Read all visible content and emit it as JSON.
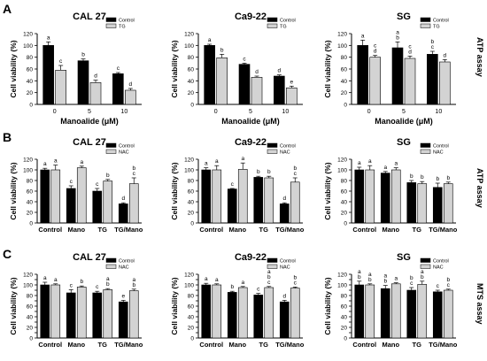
{
  "colors": {
    "control": "#000000",
    "treat": "#d3d3d3",
    "axis": "#000000"
  },
  "panel_letters": [
    "A",
    "B",
    "C"
  ],
  "assay_labels": [
    "ATP assay",
    "ATP assay",
    "MTS assay"
  ],
  "chart_data": [
    {
      "type": "bar",
      "row": 0,
      "col": 0,
      "title": "CAL 27",
      "xlabel": "Manoalide (μM)",
      "ylabel": "Cell viability (%)",
      "ylim": [
        0,
        120
      ],
      "yticks": [
        0,
        20,
        40,
        60,
        80,
        100,
        120
      ],
      "categories": [
        "0",
        "5",
        "10"
      ],
      "legend": {
        "placement": "top-right",
        "entries": [
          "Control",
          "TG"
        ]
      },
      "series": [
        {
          "name": "Control",
          "values": [
            100,
            74,
            52
          ],
          "errors": [
            6,
            3,
            2
          ],
          "letters": [
            "a",
            "b",
            "c"
          ]
        },
        {
          "name": "TG",
          "values": [
            58,
            37,
            24
          ],
          "errors": [
            8,
            4,
            3
          ],
          "letters": [
            "c",
            "d",
            "d"
          ]
        }
      ]
    },
    {
      "type": "bar",
      "row": 0,
      "col": 1,
      "title": "Ca9-22",
      "xlabel": "Manoalide (μM)",
      "ylabel": "Cell viability (%)",
      "ylim": [
        0,
        120
      ],
      "yticks": [
        0,
        20,
        40,
        60,
        80,
        100,
        120
      ],
      "categories": [
        "0",
        "5",
        "10"
      ],
      "legend": {
        "placement": "top-right",
        "entries": [
          "Control",
          "TG"
        ]
      },
      "series": [
        {
          "name": "Control",
          "values": [
            100,
            68,
            48
          ],
          "errors": [
            2,
            2,
            2
          ],
          "letters": [
            "a",
            "c",
            "d"
          ]
        },
        {
          "name": "TG",
          "values": [
            79,
            46,
            28
          ],
          "errors": [
            6,
            2,
            3
          ],
          "letters": [
            "b",
            "d",
            "e"
          ]
        }
      ]
    },
    {
      "type": "bar",
      "row": 0,
      "col": 2,
      "title": "SG",
      "xlabel": "Manoalide (μM)",
      "ylabel": "Cell viability (%)",
      "ylim": [
        0,
        120
      ],
      "yticks": [
        0,
        20,
        40,
        60,
        80,
        100,
        120
      ],
      "categories": [
        "0",
        "5",
        "10"
      ],
      "legend": {
        "placement": "top-right",
        "entries": [
          "Control",
          "TG"
        ]
      },
      "series": [
        {
          "name": "Control",
          "values": [
            100,
            96,
            85
          ],
          "errors": [
            9,
            10,
            5
          ],
          "letters": [
            "a",
            "a\nb",
            "b\nc"
          ]
        },
        {
          "name": "TG",
          "values": [
            80,
            78,
            72
          ],
          "errors": [
            3,
            4,
            4
          ],
          "letters": [
            "c\nd",
            "c\nd",
            "d"
          ]
        }
      ]
    },
    {
      "type": "bar",
      "row": 1,
      "col": 0,
      "title": "CAL 27",
      "ylabel": "Cell viability (%)",
      "ylim": [
        0,
        120
      ],
      "yticks": [
        0,
        20,
        40,
        60,
        80,
        100,
        120
      ],
      "categories": [
        "Control",
        "Mano",
        "TG",
        "TG/Mano"
      ],
      "legend": {
        "placement": "top-right",
        "entries": [
          "Control",
          "NAC"
        ]
      },
      "series": [
        {
          "name": "Control",
          "values": [
            100,
            65,
            60,
            36
          ],
          "errors": [
            3,
            5,
            5,
            2
          ],
          "letters": [
            "a",
            "c",
            "c",
            "d"
          ]
        },
        {
          "name": "NAC",
          "values": [
            100,
            104,
            79,
            74
          ],
          "errors": [
            9,
            3,
            3,
            11
          ],
          "letters": [
            "a",
            "a",
            "b",
            "b\nc"
          ]
        }
      ]
    },
    {
      "type": "bar",
      "row": 1,
      "col": 1,
      "title": "Ca9-22",
      "ylabel": "Cell viability (%)",
      "ylim": [
        0,
        120
      ],
      "yticks": [
        0,
        20,
        40,
        60,
        80,
        100,
        120
      ],
      "categories": [
        "Control",
        "Mano",
        "TG",
        "TG/Mano"
      ],
      "legend": {
        "placement": "top-right",
        "entries": [
          "Control",
          "NAC"
        ]
      },
      "series": [
        {
          "name": "Control",
          "values": [
            100,
            64,
            86,
            36
          ],
          "errors": [
            4,
            1,
            2,
            2
          ],
          "letters": [
            "a",
            "c",
            "b",
            "d"
          ]
        },
        {
          "name": "NAC",
          "values": [
            100,
            101,
            85,
            77
          ],
          "errors": [
            8,
            12,
            3,
            8
          ],
          "letters": [
            "a",
            "a",
            "b",
            "b\nc"
          ]
        }
      ]
    },
    {
      "type": "bar",
      "row": 1,
      "col": 2,
      "title": "SG",
      "ylabel": "Cell viability (%)",
      "ylim": [
        0,
        120
      ],
      "yticks": [
        0,
        20,
        40,
        60,
        80,
        100,
        120
      ],
      "categories": [
        "Control",
        "Mano",
        "TG",
        "TG/Mano"
      ],
      "legend": {
        "placement": "top-right",
        "entries": [
          "Control",
          "NAC"
        ]
      },
      "series": [
        {
          "name": "Control",
          "values": [
            100,
            94,
            76,
            67
          ],
          "errors": [
            5,
            3,
            4,
            8
          ],
          "letters": [
            "a",
            "a",
            "b",
            "b"
          ]
        },
        {
          "name": "NAC",
          "values": [
            100,
            100,
            74,
            74
          ],
          "errors": [
            8,
            4,
            4,
            3
          ],
          "letters": [
            "a",
            "a",
            "b",
            "b"
          ]
        }
      ]
    },
    {
      "type": "bar",
      "row": 2,
      "col": 0,
      "title": "CAL 27",
      "ylabel": "Cell viability (%)",
      "ylim": [
        0,
        120
      ],
      "yticks": [
        0,
        10,
        20,
        30,
        40,
        50,
        60,
        70,
        80,
        90,
        100,
        110,
        120
      ],
      "categories": [
        "Control",
        "Mano",
        "TG",
        "TG/Mano"
      ],
      "legend": {
        "placement": "top-right",
        "entries": [
          "Control",
          "NAC"
        ]
      },
      "series": [
        {
          "name": "Control",
          "values": [
            100,
            85,
            85,
            68
          ],
          "errors": [
            5,
            6,
            3,
            3
          ],
          "letters": [
            "a",
            "c",
            "c",
            "e"
          ]
        },
        {
          "name": "NAC",
          "values": [
            100,
            96,
            91,
            89
          ],
          "errors": [
            2,
            2,
            2,
            3
          ],
          "letters": [
            "a",
            "b",
            "a\nb",
            "a\nb"
          ]
        }
      ]
    },
    {
      "type": "bar",
      "row": 2,
      "col": 1,
      "title": "Ca9-22",
      "ylabel": "Cell viability (%)",
      "ylim": [
        0,
        120
      ],
      "yticks": [
        0,
        10,
        20,
        30,
        40,
        50,
        60,
        70,
        80,
        90,
        100,
        110,
        120
      ],
      "categories": [
        "Control",
        "Mano",
        "TG",
        "TG/Mano"
      ],
      "legend": {
        "placement": "top-right",
        "entries": [
          "Control",
          "NAC"
        ]
      },
      "series": [
        {
          "name": "Control",
          "values": [
            100,
            86,
            81,
            68
          ],
          "errors": [
            3,
            2,
            3,
            3
          ],
          "letters": [
            "a",
            "b",
            "c",
            "d"
          ]
        },
        {
          "name": "NAC",
          "values": [
            100,
            95,
            95,
            94
          ],
          "errors": [
            2,
            2,
            2,
            2
          ],
          "letters": [
            "a",
            "a",
            "a\nb\nc",
            "b\nc"
          ]
        }
      ]
    },
    {
      "type": "bar",
      "row": 2,
      "col": 2,
      "title": "SG",
      "ylabel": "Cell viability (%)",
      "ylim": [
        0,
        120
      ],
      "yticks": [
        0,
        10,
        20,
        30,
        40,
        50,
        60,
        70,
        80,
        90,
        100,
        110,
        120
      ],
      "categories": [
        "Control",
        "Mano",
        "TG",
        "TG/Mano"
      ],
      "legend": {
        "placement": "top-right",
        "entries": [
          "Control",
          "NAC"
        ]
      },
      "series": [
        {
          "name": "Control",
          "values": [
            100,
            93,
            90,
            87
          ],
          "errors": [
            7,
            6,
            5,
            3
          ],
          "letters": [
            "a\nb",
            "a\nb",
            "b\nc",
            "c"
          ]
        },
        {
          "name": "NAC",
          "values": [
            100,
            102,
            101,
            90
          ],
          "errors": [
            2,
            2,
            6,
            2
          ],
          "letters": [
            "a\nb",
            "a",
            "a\nb",
            "b\nc"
          ]
        }
      ]
    }
  ]
}
